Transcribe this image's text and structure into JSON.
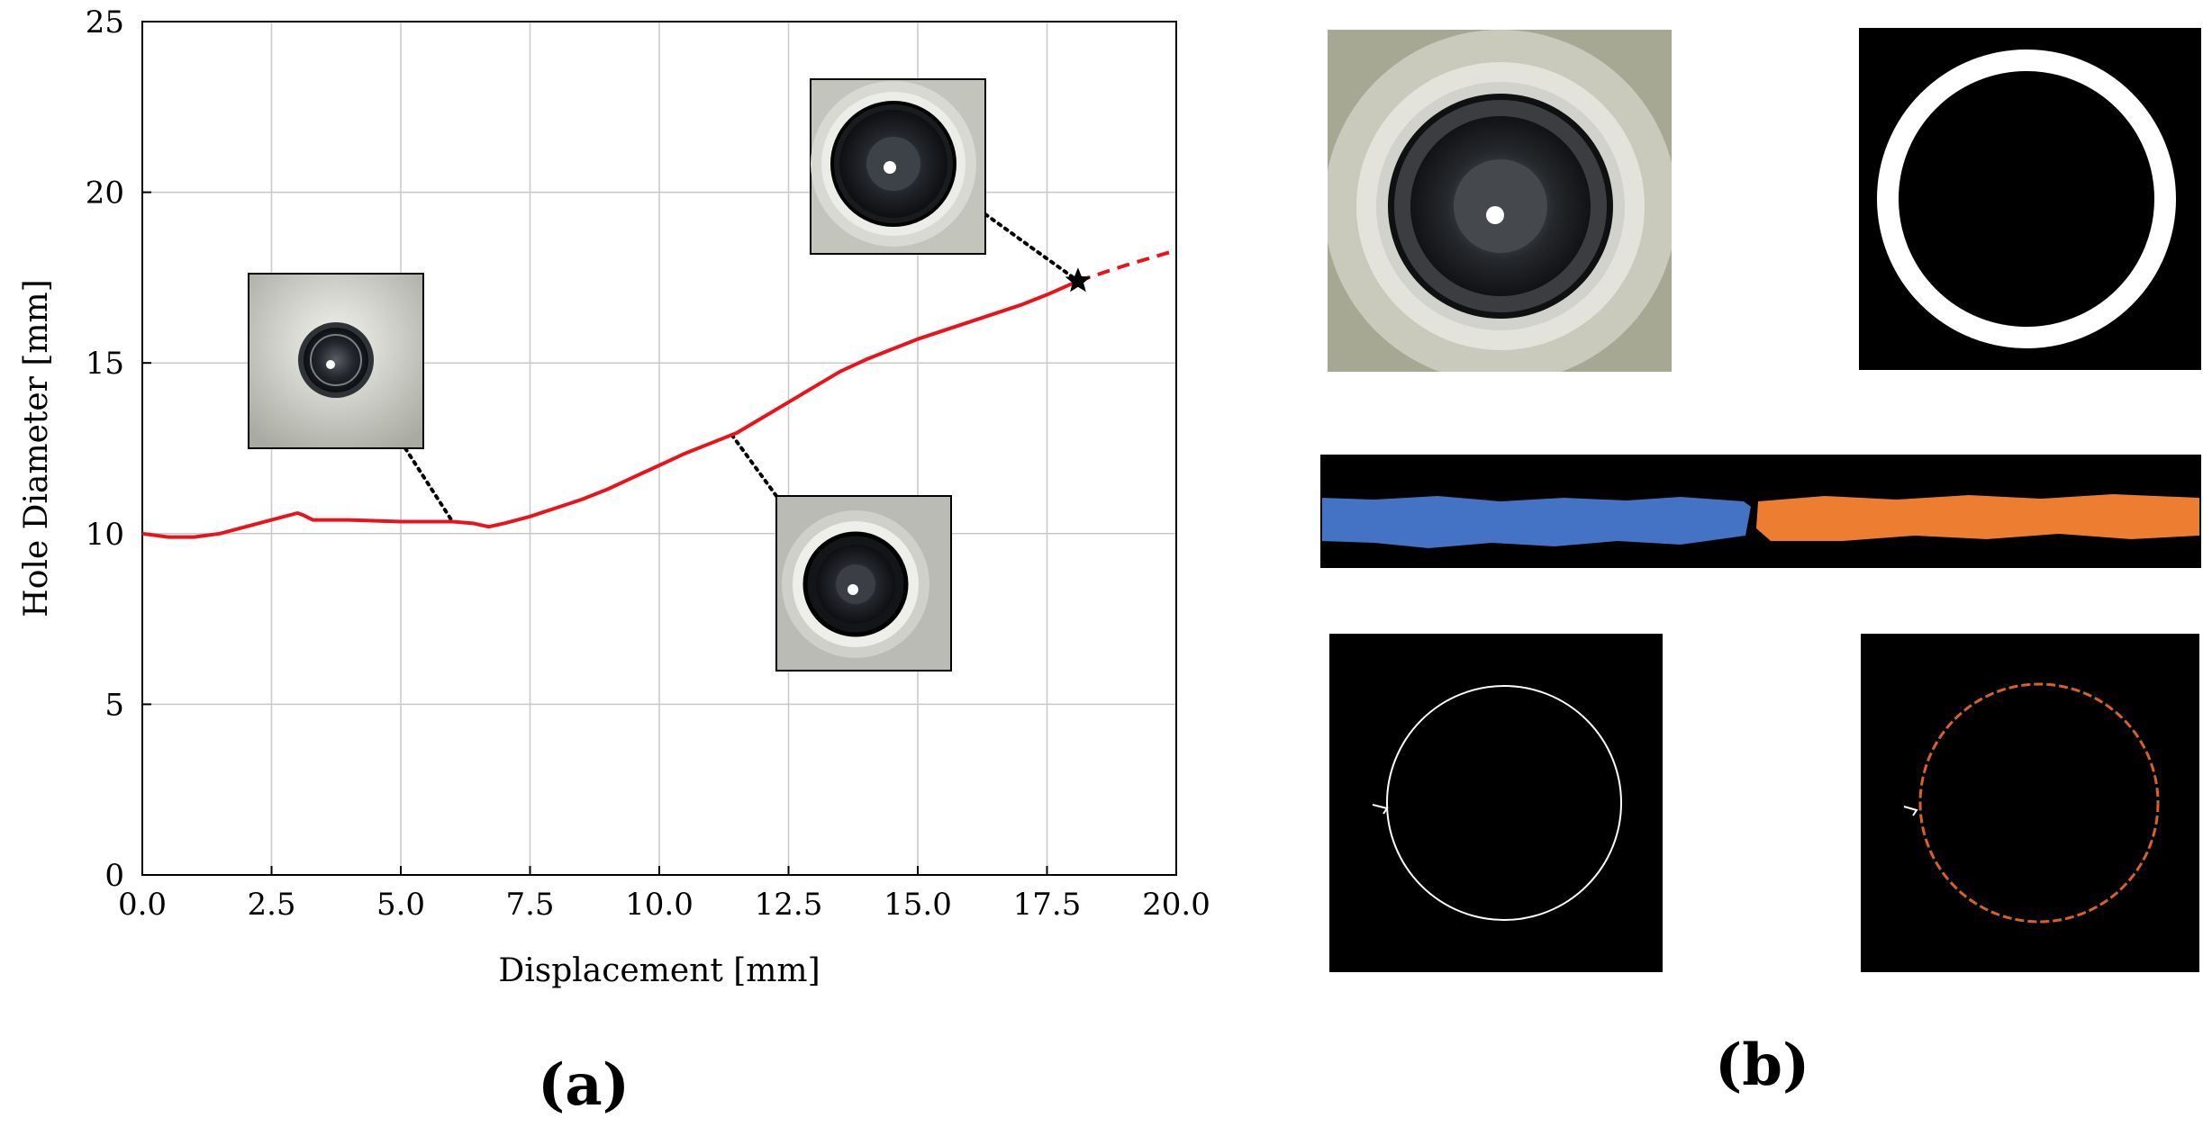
{
  "panel_labels": {
    "a": "(a)",
    "b": "(b)"
  },
  "chart_data": {
    "type": "line",
    "title": "",
    "xlabel": "Displacement [mm]",
    "ylabel": "Hole Diameter [mm]",
    "xlim": [
      0,
      20
    ],
    "ylim": [
      0,
      25
    ],
    "xticks": [
      0.0,
      2.5,
      5.0,
      7.5,
      10.0,
      12.5,
      15.0,
      17.5,
      20.0
    ],
    "xtick_labels": [
      "0.0",
      "2.5",
      "5.0",
      "7.5",
      "10.0",
      "12.5",
      "15.0",
      "17.5",
      "20.0"
    ],
    "yticks": [
      0,
      5,
      10,
      15,
      20,
      25
    ],
    "ytick_labels": [
      "0",
      "5",
      "10",
      "15",
      "20",
      "25"
    ],
    "grid": true,
    "series": [
      {
        "style": "solid",
        "color": "#e8141b",
        "x": [
          0,
          0.5,
          1.0,
          1.5,
          2.0,
          2.5,
          3.0,
          3.1,
          3.3,
          4.0,
          5.0,
          6.0,
          6.4,
          6.7,
          7.0,
          7.5,
          8.0,
          8.5,
          9.0,
          9.5,
          10.0,
          10.5,
          11.0,
          11.5,
          12.0,
          12.5,
          13.0,
          13.5,
          14.0,
          14.5,
          15.0,
          15.5,
          16.0,
          16.5,
          17.0,
          17.5,
          18.1
        ],
        "y": [
          10.0,
          9.9,
          9.9,
          10.0,
          10.2,
          10.4,
          10.6,
          10.55,
          10.4,
          10.4,
          10.35,
          10.35,
          10.3,
          10.2,
          10.3,
          10.5,
          10.75,
          11.0,
          11.3,
          11.65,
          12.0,
          12.35,
          12.65,
          12.95,
          13.4,
          13.85,
          14.3,
          14.75,
          15.1,
          15.4,
          15.7,
          15.95,
          16.2,
          16.45,
          16.7,
          17.0,
          17.4
        ]
      },
      {
        "style": "dashed",
        "color": "#e8141b",
        "x": [
          18.1,
          19.0,
          20.0
        ],
        "y": [
          17.4,
          17.85,
          18.3
        ]
      }
    ],
    "marker": {
      "shape": "star",
      "x": 18.1,
      "y": 17.4
    },
    "insets": [
      {
        "name": "inset-early",
        "target": [
          6.0,
          10.35
        ]
      },
      {
        "name": "inset-mid",
        "target": [
          11.4,
          12.9
        ]
      },
      {
        "name": "inset-late",
        "target": [
          18.1,
          17.4
        ]
      }
    ]
  },
  "panel_b_tiles": [
    "hole-photo",
    "binary-ring-mask",
    "unwrapped-ring-segments",
    "edge-contour",
    "colored-edge-contour"
  ],
  "colors": {
    "blue_segment": "#4472c4",
    "orange_segment": "#ed7d31",
    "edge_orange": "#e06020"
  }
}
